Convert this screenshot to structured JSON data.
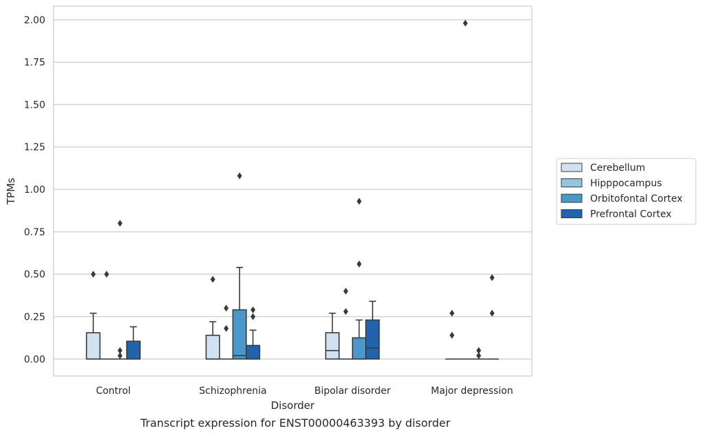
{
  "chart_data": {
    "type": "box",
    "title": "",
    "caption": "Transcript expression for ENST00000463393 by disorder",
    "xlabel": "Disorder",
    "ylabel": "TPMs",
    "ylim": [
      -0.1,
      2.08
    ],
    "yticks": [
      "0.00",
      "0.25",
      "0.50",
      "0.75",
      "1.00",
      "1.25",
      "1.50",
      "1.75",
      "2.00"
    ],
    "grid": "horizontal",
    "legend_position": "right",
    "categories": [
      "Control",
      "Schizophrenia",
      "Bipolar disorder",
      "Major depression"
    ],
    "series": [
      {
        "name": "Cerebellum",
        "color": "#d0e1f2",
        "boxes": [
          {
            "q1": 0,
            "median": 0,
            "q3": 0.155,
            "whislo": 0,
            "whishi": 0.27,
            "fliers": [
              0.5
            ]
          },
          {
            "q1": 0,
            "median": 0,
            "q3": 0.14,
            "whislo": 0,
            "whishi": 0.22,
            "fliers": [
              0.47
            ]
          },
          {
            "q1": 0,
            "median": 0.05,
            "q3": 0.155,
            "whislo": 0,
            "whishi": 0.27,
            "fliers": []
          },
          {
            "q1": 0,
            "median": 0,
            "q3": 0,
            "whislo": 0,
            "whishi": 0,
            "fliers": [
              0.14,
              0.27
            ]
          }
        ]
      },
      {
        "name": "Hipppocampus",
        "color": "#94c4df",
        "boxes": [
          {
            "q1": 0,
            "median": 0,
            "q3": 0,
            "whislo": 0,
            "whishi": 0,
            "fliers": [
              0.5
            ]
          },
          {
            "q1": 0,
            "median": 0,
            "q3": 0,
            "whislo": 0,
            "whishi": 0,
            "fliers": [
              0.18,
              0.3
            ]
          },
          {
            "q1": 0,
            "median": 0,
            "q3": 0,
            "whislo": 0,
            "whishi": 0,
            "fliers": [
              0.28,
              0.4
            ]
          },
          {
            "q1": 0,
            "median": 0,
            "q3": 0,
            "whislo": 0,
            "whishi": 0,
            "fliers": [
              1.98
            ]
          }
        ]
      },
      {
        "name": "Orbitofontal Cortex",
        "color": "#4a98c9",
        "boxes": [
          {
            "q1": 0,
            "median": 0,
            "q3": 0,
            "whislo": 0,
            "whishi": 0,
            "fliers": [
              0.02,
              0.05,
              0.8
            ]
          },
          {
            "q1": 0,
            "median": 0.02,
            "q3": 0.29,
            "whislo": 0,
            "whishi": 0.54,
            "fliers": [
              1.08
            ]
          },
          {
            "q1": 0,
            "median": 0,
            "q3": 0.125,
            "whislo": 0,
            "whishi": 0.23,
            "fliers": [
              0.56,
              0.93
            ]
          },
          {
            "q1": 0,
            "median": 0,
            "q3": 0,
            "whislo": 0,
            "whishi": 0,
            "fliers": [
              0.02,
              0.05
            ]
          }
        ]
      },
      {
        "name": "Prefrontal Cortex",
        "color": "#2164ab",
        "boxes": [
          {
            "q1": 0,
            "median": 0,
            "q3": 0.105,
            "whislo": 0,
            "whishi": 0.19,
            "fliers": []
          },
          {
            "q1": 0,
            "median": 0,
            "q3": 0.08,
            "whislo": 0,
            "whishi": 0.17,
            "fliers": [
              0.25,
              0.29
            ]
          },
          {
            "q1": 0,
            "median": 0.065,
            "q3": 0.23,
            "whislo": 0,
            "whishi": 0.34,
            "fliers": []
          },
          {
            "q1": 0,
            "median": 0,
            "q3": 0,
            "whislo": 0,
            "whishi": 0,
            "fliers": [
              0.27,
              0.48
            ]
          }
        ]
      }
    ]
  },
  "colors": {
    "grid": "#cccccc",
    "frame": "#cccccc",
    "outline": "#3a3a3a"
  }
}
